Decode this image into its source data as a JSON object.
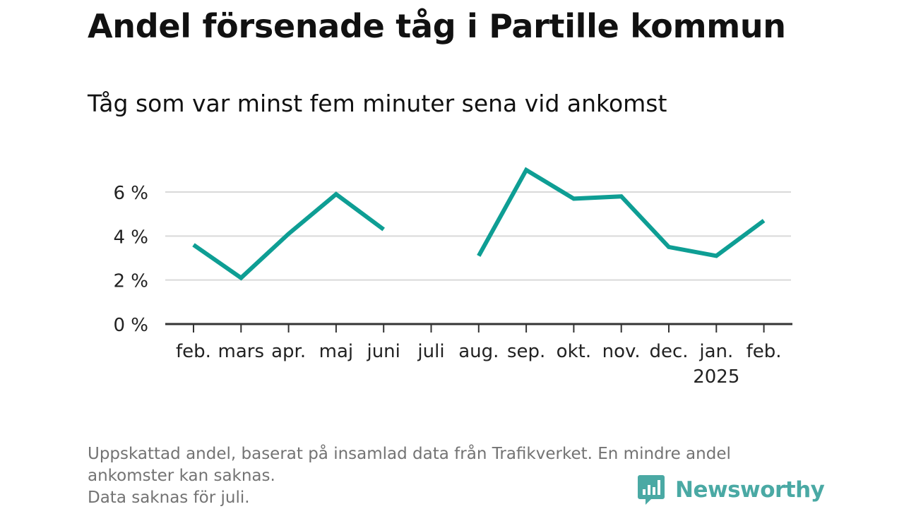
{
  "title": "Andel försenade tåg i Partille kommun",
  "subtitle": "Tåg som var minst fem minuter sena vid ankomst",
  "notes": [
    "Uppskattad andel, baserat på insamlad data från Trafikverket. En mindre andel",
    "ankomster kan saknas.",
    "Data saknas för juli."
  ],
  "brand": {
    "name": "Newsworthy",
    "color": "#4aa9a4",
    "icon": "newsworthy-logo-icon"
  },
  "colors": {
    "line": "#0e9e94",
    "grid": "#d9d9d9",
    "axis": "#333333",
    "text": "#222222"
  },
  "chart_data": {
    "type": "line",
    "title": "Andel försenade tåg i Partille kommun",
    "subtitle": "Tåg som var minst fem minuter sena vid ankomst",
    "xlabel": "",
    "ylabel": "",
    "ylim": [
      0,
      7
    ],
    "yticks": [
      0,
      2,
      4,
      6
    ],
    "ytick_labels": [
      "0 %",
      "2 %",
      "4 %",
      "6 %"
    ],
    "grid": true,
    "legend": "none",
    "categories": [
      "feb.",
      "mars",
      "apr.",
      "maj",
      "juni",
      "juli",
      "aug.",
      "sep.",
      "okt.",
      "nov.",
      "dec.",
      "jan.",
      "feb."
    ],
    "category_sublabels": [
      "",
      "",
      "",
      "",
      "",
      "",
      "",
      "",
      "",
      "",
      "",
      "2025",
      ""
    ],
    "series": [
      {
        "values": [
          3.6,
          2.1,
          4.1,
          5.9,
          4.3,
          null,
          3.1,
          7.0,
          5.7,
          5.8,
          3.5,
          3.1,
          4.7
        ]
      }
    ]
  }
}
